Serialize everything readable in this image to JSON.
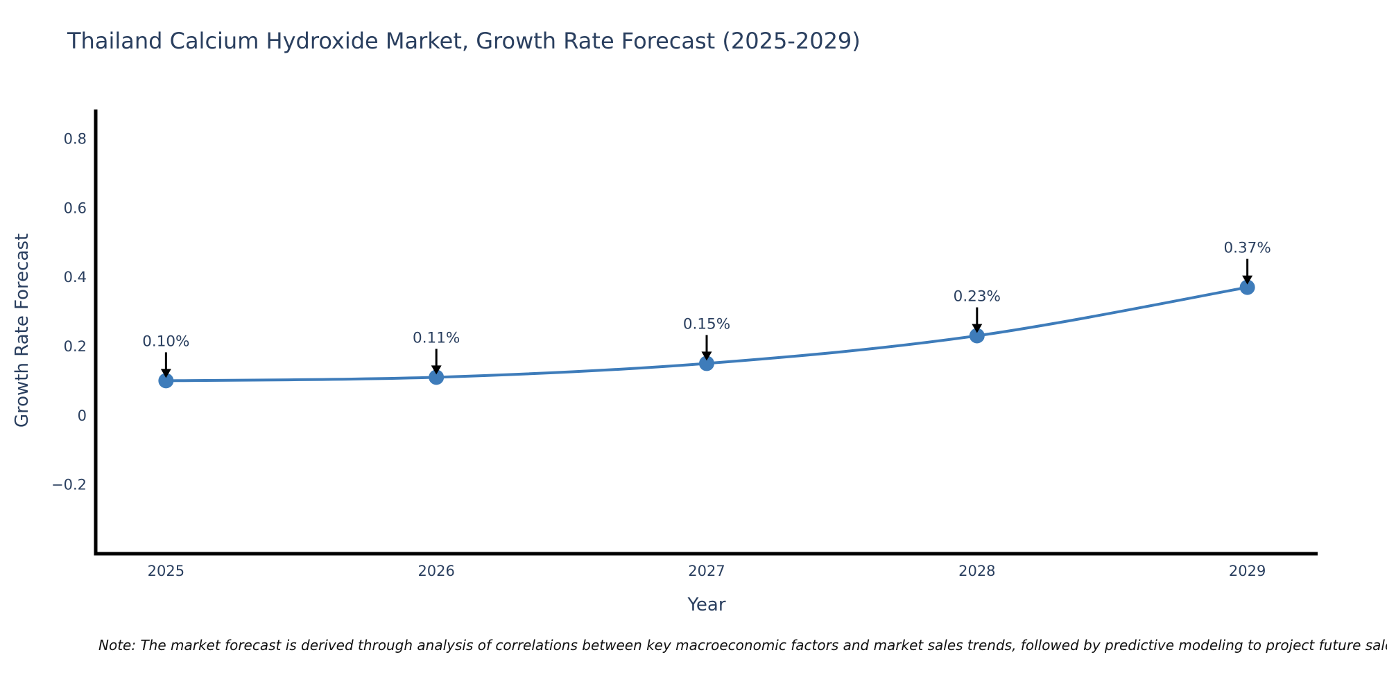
{
  "chart_data": {
    "type": "line",
    "title": "Thailand Calcium Hydroxide Market, Growth Rate Forecast (2025-2029)",
    "xlabel": "Year",
    "ylabel": "Growth Rate Forecast",
    "x": [
      2025,
      2026,
      2027,
      2028,
      2029
    ],
    "values": [
      0.1,
      0.11,
      0.15,
      0.23,
      0.37
    ],
    "point_labels": [
      "0.10%",
      "0.11%",
      "0.15%",
      "0.23%",
      "0.37%"
    ],
    "xtick_labels": [
      "2025",
      "2026",
      "2027",
      "2028",
      "2029"
    ],
    "xtick_values": [
      2025,
      2026,
      2027,
      2028,
      2029
    ],
    "ytick_labels": [
      "0.8",
      "0.6",
      "0.4",
      "0.2",
      "0",
      "−0.2"
    ],
    "ytick_values": [
      0.8,
      0.6,
      0.4,
      0.2,
      0,
      -0.2
    ],
    "xlim": [
      2024.74,
      2029.26
    ],
    "ylim": [
      -0.4,
      0.884
    ],
    "grid": false,
    "legend": false,
    "line_shape": "spline",
    "line_color": "#3e7cba",
    "marker_color": "#3e7cba",
    "axis_color": "#000000",
    "tick_color": "#2a3f5f",
    "annotation_text_color": "#2a3f5f",
    "annotation_arrow_color": "#000000",
    "background_color": "#ffffff"
  },
  "note": "Note: The market forecast is derived through analysis of correlations between key macroeconomic factors and market sales trends, followed by predictive modeling to project future sales."
}
